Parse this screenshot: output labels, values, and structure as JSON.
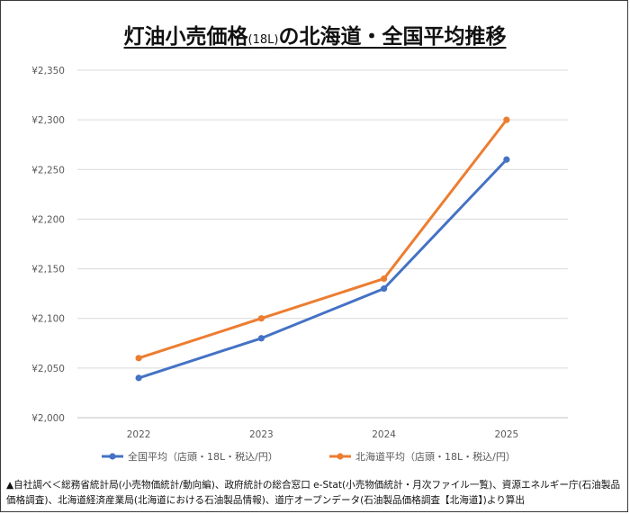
{
  "title": {
    "main": "灯油小売価格",
    "small": "(18L)",
    "rest": "の北海道・全国平均推移"
  },
  "source_note": "▲自社調べ＜総務省統計局(小売物価統計/動向編)、政府統計の総合窓口 e-Stat(小売物価統計・月次ファイル一覧)、資源エネルギー庁(石油製品価格調査)、北海道経済産業局(北海道における石油製品情報)、道庁オープンデータ(石油製品価格調査【北海道】)より算出",
  "chart_data": {
    "type": "line",
    "title": "灯油小売価格(18L)の北海道・全国平均推移",
    "x": [
      "2022",
      "2023",
      "2024",
      "2025"
    ],
    "y_ticks": [
      "¥2,000",
      "¥2,050",
      "¥2,100",
      "¥2,150",
      "¥2,200",
      "¥2,250",
      "¥2,300",
      "¥2,350"
    ],
    "ylim": [
      2000,
      2350
    ],
    "grid": true,
    "legend_position": "bottom",
    "series": [
      {
        "name": "全国平均（店頭・18L・税込/円）",
        "color": "#4472c4",
        "values": [
          2040,
          2080,
          2130,
          2260
        ]
      },
      {
        "name": "北海道平均（店頭・18L・税込/円）",
        "color": "#ed7d31",
        "values": [
          2060,
          2100,
          2140,
          2300
        ]
      }
    ]
  }
}
